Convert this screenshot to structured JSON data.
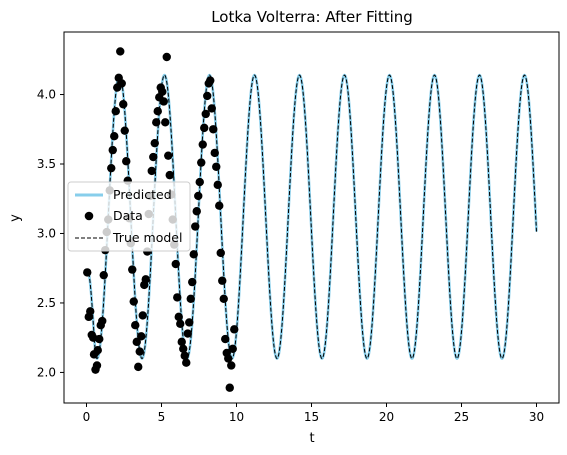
{
  "chart_data": {
    "type": "line",
    "title": "Lotka Volterra: After Fitting",
    "xlabel": "t",
    "ylabel": "y",
    "xlim": [
      -1.5,
      31.5
    ],
    "ylim": [
      1.78,
      4.45
    ],
    "xticks": [
      0,
      5,
      10,
      15,
      20,
      25,
      30
    ],
    "yticks": [
      2.0,
      2.5,
      3.0,
      3.5,
      4.0
    ],
    "ytick_labels": [
      "2.0",
      "2.5",
      "3.0",
      "3.5",
      "4.0"
    ],
    "grid": false,
    "legend": {
      "position": "center-left",
      "entries": [
        "Predicted",
        "Data",
        "True model"
      ]
    },
    "colors": {
      "predicted": "#87ceeb",
      "true_model": "#000000",
      "data": "#000000"
    },
    "series": [
      {
        "name": "Predicted",
        "style": "solid",
        "curve": {
          "t_start": 0,
          "t_end": 30,
          "y_start": 2.72,
          "midline": 3.12,
          "amplitude": 1.02,
          "period": 3.0,
          "first_peak_t": 2.2,
          "y_min": 2.1,
          "y_max": 4.14
        }
      },
      {
        "name": "True model",
        "style": "dashed",
        "curve": {
          "t_start": 0,
          "t_end": 30,
          "y_start": 2.72,
          "midline": 3.12,
          "amplitude": 1.02,
          "period": 3.0,
          "first_peak_t": 2.2,
          "y_min": 2.1,
          "y_max": 4.14
        }
      },
      {
        "name": "Data",
        "points": [
          [
            0.05,
            2.72
          ],
          [
            0.15,
            2.4
          ],
          [
            0.25,
            2.44
          ],
          [
            0.35,
            2.27
          ],
          [
            0.45,
            2.25
          ],
          [
            0.5,
            2.13
          ],
          [
            0.6,
            2.02
          ],
          [
            0.7,
            2.05
          ],
          [
            0.75,
            2.16
          ],
          [
            0.85,
            2.24
          ],
          [
            0.95,
            2.34
          ],
          [
            1.05,
            2.37
          ],
          [
            1.15,
            2.7
          ],
          [
            1.25,
            2.88
          ],
          [
            1.35,
            3.01
          ],
          [
            1.45,
            3.1
          ],
          [
            1.55,
            3.31
          ],
          [
            1.65,
            3.47
          ],
          [
            1.75,
            3.6
          ],
          [
            1.85,
            3.7
          ],
          [
            1.95,
            3.88
          ],
          [
            2.05,
            4.05
          ],
          [
            2.15,
            4.12
          ],
          [
            2.25,
            4.31
          ],
          [
            2.35,
            4.08
          ],
          [
            2.45,
            3.93
          ],
          [
            2.55,
            3.74
          ],
          [
            2.65,
            3.52
          ],
          [
            2.75,
            3.38
          ],
          [
            2.85,
            3.11
          ],
          [
            2.95,
            2.93
          ],
          [
            3.05,
            2.74
          ],
          [
            3.15,
            2.51
          ],
          [
            3.25,
            2.34
          ],
          [
            3.35,
            2.22
          ],
          [
            3.45,
            2.04
          ],
          [
            3.55,
            2.15
          ],
          [
            3.65,
            2.26
          ],
          [
            3.75,
            2.41
          ],
          [
            3.85,
            2.63
          ],
          [
            3.95,
            2.67
          ],
          [
            4.05,
            2.87
          ],
          [
            4.15,
            3.14
          ],
          [
            4.25,
            3.27
          ],
          [
            4.35,
            3.45
          ],
          [
            4.45,
            3.55
          ],
          [
            4.55,
            3.65
          ],
          [
            4.65,
            3.8
          ],
          [
            4.75,
            3.88
          ],
          [
            4.85,
            3.98
          ],
          [
            4.95,
            4.05
          ],
          [
            5.05,
            4.02
          ],
          [
            5.15,
            3.95
          ],
          [
            5.25,
            3.8
          ],
          [
            5.35,
            4.27
          ],
          [
            5.45,
            3.56
          ],
          [
            5.55,
            3.42
          ],
          [
            5.65,
            3.28
          ],
          [
            5.75,
            3.1
          ],
          [
            5.85,
            2.92
          ],
          [
            5.95,
            2.78
          ],
          [
            6.05,
            2.54
          ],
          [
            6.15,
            2.4
          ],
          [
            6.25,
            2.35
          ],
          [
            6.35,
            2.22
          ],
          [
            6.45,
            2.17
          ],
          [
            6.55,
            2.12
          ],
          [
            6.65,
            2.07
          ],
          [
            6.75,
            2.28
          ],
          [
            6.85,
            2.36
          ],
          [
            6.95,
            2.53
          ],
          [
            7.05,
            2.65
          ],
          [
            7.15,
            2.85
          ],
          [
            7.25,
            3.05
          ],
          [
            7.35,
            3.16
          ],
          [
            7.45,
            3.27
          ],
          [
            7.55,
            3.37
          ],
          [
            7.65,
            3.51
          ],
          [
            7.75,
            3.64
          ],
          [
            7.85,
            3.76
          ],
          [
            7.95,
            3.86
          ],
          [
            8.05,
            3.99
          ],
          [
            8.15,
            4.08
          ],
          [
            8.25,
            4.1
          ],
          [
            8.35,
            3.9
          ],
          [
            8.45,
            3.75
          ],
          [
            8.55,
            3.58
          ],
          [
            8.65,
            3.48
          ],
          [
            8.75,
            3.35
          ],
          [
            8.85,
            3.2
          ],
          [
            8.95,
            2.86
          ],
          [
            9.05,
            2.66
          ],
          [
            9.15,
            2.53
          ],
          [
            9.25,
            2.24
          ],
          [
            9.35,
            2.14
          ],
          [
            9.45,
            2.1
          ],
          [
            9.55,
            1.89
          ],
          [
            9.65,
            2.05
          ],
          [
            9.75,
            2.17
          ],
          [
            9.85,
            2.31
          ]
        ]
      }
    ]
  }
}
